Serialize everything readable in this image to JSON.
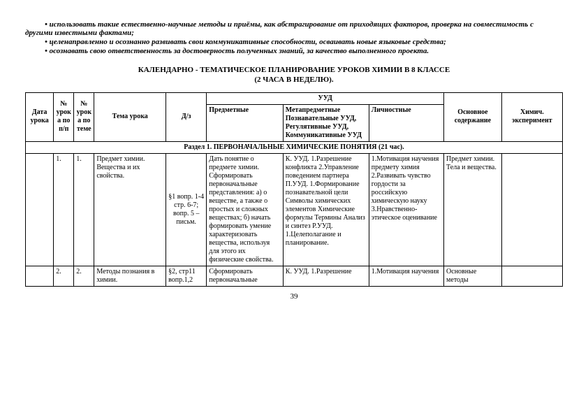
{
  "bullets": {
    "b1": "• использовать такие естественно-научные методы и приёмы, как абстрагирование от приходящих факторов, проверка на совместимость с другими известными фактами;",
    "b2": "• целенаправленно и осознанно развивать свои коммуникативные способности, осваивать новые языковые средства;",
    "b3": "• осознавать свою ответственность за достоверность полученных знаний, за качество выполненного проекта."
  },
  "title": {
    "line1": "КАЛЕНДАРНО - ТЕМАТИЧЕСКОЕ ПЛАНИРОВАНИЕ УРОКОВ ХИМИИ В 8 КЛАССЕ",
    "line2": "(2 ЧАСА В НЕДЕЛЮ)."
  },
  "headers": {
    "c1": "Дата урока",
    "c2": "№ урока по п/п",
    "c3": "№ урока по теме",
    "c4": "Тема урока",
    "c5": "Д/з",
    "uud": "УУД",
    "c6": "Предметные",
    "c7": "Метапредметные Познавательные УУД, Регулятивные УУД, Коммуникативные УУД",
    "c8": "Личностные",
    "c9": "Основное содержание",
    "c10": "Химич. эксперимент"
  },
  "section": "Раздел 1. ПЕРВОНАЧАЛЬНЫЕ ХИМИЧЕСКИЕ ПОНЯТИЯ (21 час).",
  "rows": {
    "r1": {
      "date": "",
      "npp": "1.",
      "ntheme": "1.",
      "topic": "Предмет химии. Вещества и их свойства.",
      "hw": "§1 вопр. 1-4 стр. 6-7; вопр. 5 – письм.",
      "subj": "Дать понятие о предмете химии. Сформировать первоначальные представления: а) о веществе, а также о простых и сложных веществах; б) начать формировать умение характеризовать вещества, используя для этого их физические свойства.",
      "meta": "К. УУД. 1.Разрешение конфликта 2.Управление поведением партнера П.УУД. 1.Формирование познавательной цели Символы химических элементов Химические формулы Термины Анализ и синтез Р.УУД. 1.Целеполагание и планирование.",
      "pers": "1.Мотивация научения предмету химия 2.Развивать чувство гордости за российскую химическую науку 3.Нравственно-этическое оценивание",
      "content": "Предмет химии. Тела и вещества.",
      "exp": ""
    },
    "r2": {
      "date": "",
      "npp": "2.",
      "ntheme": "2.",
      "topic": "Методы познания в химии.",
      "hw": "§2, стр11 вопр.1,2",
      "subj": "Сформировать первоначальные",
      "meta": "К. УУД. 1.Разрешение",
      "pers": "1.Мотивация научения",
      "content": "Основные методы",
      "exp": ""
    }
  },
  "pageNumber": "39",
  "col_widths": {
    "c1": "36",
    "c2": "26",
    "c3": "26",
    "c4": "92",
    "c5": "52",
    "c6": "98",
    "c7": "110",
    "c8": "96",
    "c9": "74",
    "c10": "78"
  }
}
